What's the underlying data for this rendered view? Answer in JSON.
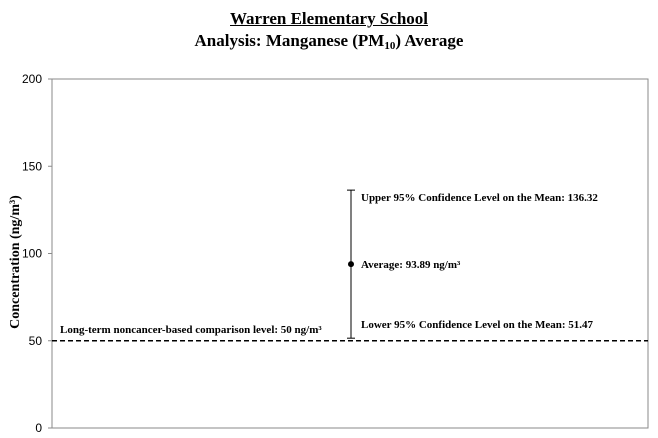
{
  "title": {
    "line1": "Warren Elementary School",
    "line2_prefix": "Analysis: Manganese (PM",
    "line2_sub": "10",
    "line2_suffix": ") Average"
  },
  "chart_data": {
    "type": "scatter",
    "ylabel": "Concentration (ng/m³)",
    "ylim": [
      0,
      200
    ],
    "yticks": [
      "0",
      "50",
      "100",
      "150",
      "200"
    ],
    "grid": false,
    "series": [
      {
        "name": "Average",
        "values": [
          93.89
        ],
        "ci_upper": 136.32,
        "ci_lower": 51.47
      }
    ],
    "reference_line": {
      "value": 50,
      "style": "dashed",
      "label": "Long-term noncancer-based comparison level: 50 ng/m³"
    },
    "annotations": {
      "upper": "Upper 95% Confidence Level on the Mean: 136.32",
      "average": "Average: 93.89 ng/m³",
      "lower": "Lower 95% Confidence Level on the Mean: 51.47"
    }
  }
}
